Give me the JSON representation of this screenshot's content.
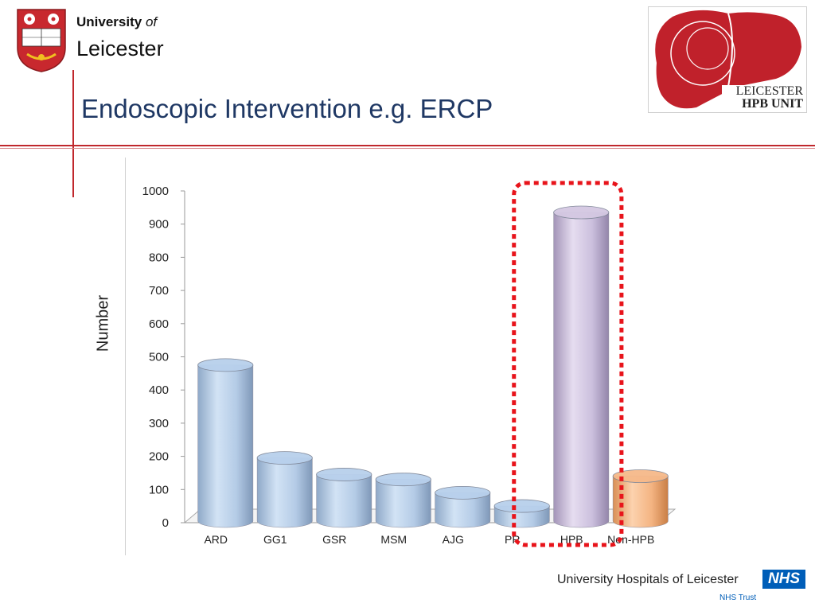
{
  "header": {
    "university_word": "University",
    "of_word": "of",
    "city_word": "Leicester",
    "slide_title": "Endoscopic Intervention e.g. ERCP"
  },
  "logo": {
    "line1": "LEICESTER",
    "line2": "HPB UNIT",
    "color": "#c0212b"
  },
  "footer": {
    "org_name": "University Hospitals of Leicester",
    "nhs_badge": "NHS",
    "nhs_trust": "NHS Trust"
  },
  "chart_data": {
    "type": "bar",
    "title": "",
    "xlabel": "",
    "ylabel": "Number",
    "ylim": [
      0,
      1000
    ],
    "yticks": [
      0,
      100,
      200,
      300,
      400,
      500,
      600,
      700,
      800,
      900,
      1000
    ],
    "categories": [
      "ARD",
      "GG1",
      "GSR",
      "MSM",
      "AJG",
      "PR",
      "HPB",
      "Non-HPB"
    ],
    "values": [
      480,
      200,
      150,
      135,
      95,
      55,
      940,
      145
    ],
    "bar_colors": [
      "#b8d0ec",
      "#b8d0ec",
      "#b8d0ec",
      "#b8d0ec",
      "#b8d0ec",
      "#b8d0ec",
      "#d4c8e2",
      "#f6b98a"
    ],
    "highlight": {
      "categories": [
        "PR",
        "HPB"
      ],
      "color": "#e8141b",
      "style": "dotted"
    },
    "grid": false
  }
}
